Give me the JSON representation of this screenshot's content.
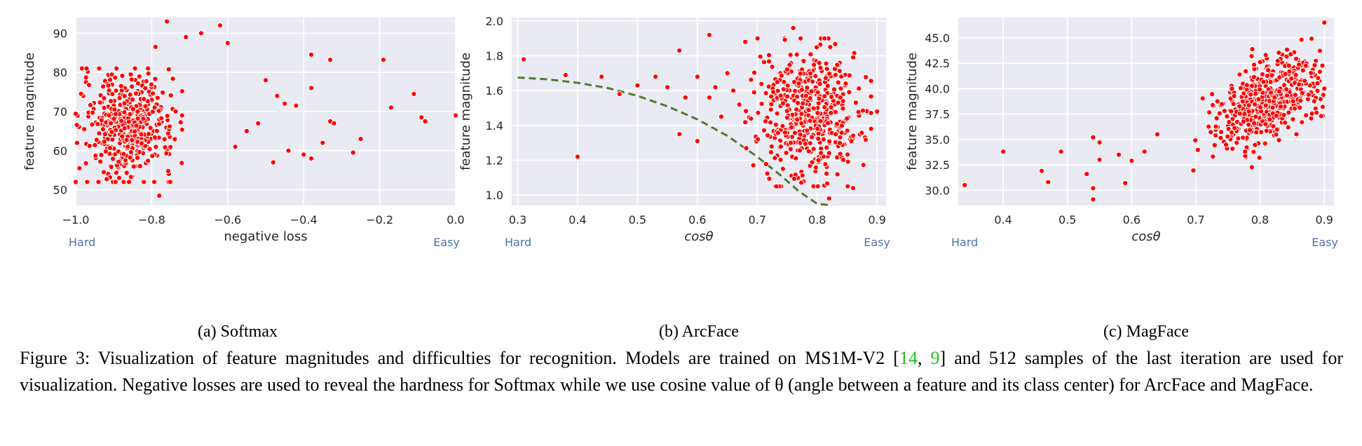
{
  "figure_label": "Figure 3:",
  "caption": {
    "text_before": "Visualization of feature magnitudes and difficulties for recognition. Models are trained on MS1M-V2 [",
    "ref1": "14",
    "sep": ", ",
    "ref2": "9",
    "text_after": "] and 512 samples of the last iteration are used for visualization. Negative losses are used to reveal the hardness for Softmax while we use cosine value of θ (angle between a feature and its class center) for ArcFace and MagFace."
  },
  "colors": {
    "panel_bg": "#eaeaf2",
    "grid": "#ffffff",
    "points": "#ff0000",
    "curve": "#4e7a2e",
    "hard_easy": "#4c72b0",
    "ref": "#22c022"
  },
  "chart_data": [
    {
      "type": "scatter",
      "subcaption": "(a) Softmax",
      "xlabel": "negative loss",
      "ylabel": "feature magnitude",
      "xlim": [
        -1.0,
        0.0
      ],
      "ylim": [
        46,
        94
      ],
      "xticks": [
        -1.0,
        -0.8,
        -0.6,
        -0.4,
        -0.2,
        0.0
      ],
      "xtick_labels": [
        "−1.0",
        "−0.8",
        "−0.6",
        "−0.4",
        "−0.2",
        "0.0"
      ],
      "yticks": [
        50,
        60,
        70,
        80,
        90
      ],
      "ytick_labels": [
        "50",
        "60",
        "70",
        "80",
        "90"
      ],
      "hard_label": "Hard",
      "easy_label": "Easy",
      "grid": true,
      "n_samples": 512,
      "cluster": {
        "x_range": [
          -0.98,
          -0.74
        ],
        "y_range": [
          52,
          81
        ]
      },
      "outliers": [
        [
          -0.76,
          93
        ],
        [
          -0.62,
          92
        ],
        [
          -0.67,
          90
        ],
        [
          -0.71,
          89
        ],
        [
          -0.6,
          87.5
        ],
        [
          -0.79,
          86.5
        ],
        [
          -0.38,
          84.5
        ],
        [
          -0.33,
          83.2
        ],
        [
          -0.19,
          83.2
        ],
        [
          -0.11,
          74.5
        ],
        [
          -0.17,
          71
        ],
        [
          -0.09,
          68.5
        ],
        [
          -0.08,
          67.5
        ],
        [
          0.0,
          69
        ],
        [
          -0.33,
          67.5
        ],
        [
          -0.32,
          67
        ],
        [
          -0.25,
          63
        ],
        [
          -0.27,
          59.5
        ],
        [
          -0.35,
          62
        ],
        [
          -0.4,
          59
        ],
        [
          -0.38,
          58
        ],
        [
          -0.48,
          57
        ],
        [
          -0.78,
          48.5
        ],
        [
          -0.94,
          52
        ],
        [
          -0.97,
          52
        ],
        [
          -0.99,
          55.5
        ],
        [
          -0.45,
          72
        ],
        [
          -0.42,
          71.5
        ],
        [
          -0.38,
          76
        ],
        [
          -0.5,
          78
        ],
        [
          -0.55,
          65
        ],
        [
          -0.44,
          60
        ],
        [
          -0.58,
          61
        ],
        [
          -0.52,
          67
        ],
        [
          -0.47,
          74
        ]
      ]
    },
    {
      "type": "scatter",
      "subcaption": "(b) ArcFace",
      "xlabel": "cosθ",
      "ylabel": "feature magnitude",
      "xlim": [
        0.29,
        0.915
      ],
      "ylim": [
        0.94,
        2.02
      ],
      "xticks": [
        0.3,
        0.4,
        0.5,
        0.6,
        0.7,
        0.8,
        0.9
      ],
      "xtick_labels": [
        "0.3",
        "0.4",
        "0.5",
        "0.6",
        "0.7",
        "0.8",
        "0.9"
      ],
      "yticks": [
        1.0,
        1.2,
        1.4,
        1.6,
        1.8,
        2.0
      ],
      "ytick_labels": [
        "1.0",
        "1.2",
        "1.4",
        "1.6",
        "1.8",
        "2.0"
      ],
      "hard_label": "Hard",
      "easy_label": "Easy",
      "grid": true,
      "n_samples": 512,
      "cluster": {
        "x_range": [
          0.7,
          0.87
        ],
        "y_range": [
          1.05,
          1.9
        ]
      },
      "outliers": [
        [
          0.31,
          1.78
        ],
        [
          0.38,
          1.69
        ],
        [
          0.4,
          1.22
        ],
        [
          0.44,
          1.68
        ],
        [
          0.47,
          1.58
        ],
        [
          0.5,
          1.63
        ],
        [
          0.53,
          1.68
        ],
        [
          0.57,
          1.83
        ],
        [
          0.58,
          1.56
        ],
        [
          0.6,
          1.68
        ],
        [
          0.6,
          1.31
        ],
        [
          0.57,
          1.35
        ],
        [
          0.62,
          1.92
        ],
        [
          0.63,
          1.62
        ],
        [
          0.65,
          1.7
        ],
        [
          0.76,
          1.96
        ],
        [
          0.9,
          1.48
        ],
        [
          0.82,
          0.98
        ],
        [
          0.86,
          1.04
        ],
        [
          0.68,
          1.88
        ],
        [
          0.55,
          1.62
        ],
        [
          0.62,
          1.56
        ],
        [
          0.66,
          1.6
        ],
        [
          0.64,
          1.45
        ],
        [
          0.67,
          1.52
        ]
      ],
      "curve": {
        "style": "dashed",
        "x": [
          0.3,
          0.35,
          0.4,
          0.45,
          0.5,
          0.55,
          0.6,
          0.65,
          0.7,
          0.74,
          0.77,
          0.8,
          0.825
        ],
        "y": [
          1.675,
          1.665,
          1.645,
          1.615,
          1.57,
          1.51,
          1.435,
          1.34,
          1.22,
          1.11,
          1.02,
          0.95,
          0.94
        ]
      }
    },
    {
      "type": "scatter",
      "subcaption": "(c) MagFace",
      "xlabel": "cosθ",
      "ylabel": "feature magnitude",
      "xlim": [
        0.33,
        0.915
      ],
      "ylim": [
        28.5,
        47
      ],
      "xticks": [
        0.4,
        0.5,
        0.6,
        0.7,
        0.8,
        0.9
      ],
      "xtick_labels": [
        "0.4",
        "0.5",
        "0.6",
        "0.7",
        "0.8",
        "0.9"
      ],
      "yticks": [
        30.0,
        32.5,
        35.0,
        37.5,
        40.0,
        42.5,
        45.0
      ],
      "ytick_labels": [
        "30.0",
        "32.5",
        "35.0",
        "37.5",
        "40.0",
        "42.5",
        "45.0"
      ],
      "hard_label": "Hard",
      "easy_label": "Easy",
      "grid": true,
      "n_samples": 512,
      "trend": {
        "x_range": [
          0.6,
          0.9
        ],
        "y_at_start": 32.5,
        "y_at_end": 41.5
      },
      "outliers": [
        [
          0.34,
          30.5
        ],
        [
          0.4,
          33.8
        ],
        [
          0.46,
          31.9
        ],
        [
          0.47,
          30.8
        ],
        [
          0.49,
          33.8
        ],
        [
          0.53,
          31.6
        ],
        [
          0.54,
          30.2
        ],
        [
          0.54,
          29.1
        ],
        [
          0.54,
          35.2
        ],
        [
          0.55,
          34.7
        ],
        [
          0.55,
          33.0
        ],
        [
          0.58,
          33.5
        ],
        [
          0.59,
          30.7
        ],
        [
          0.6,
          32.9
        ],
        [
          0.9,
          46.5
        ],
        [
          0.9,
          40.0
        ],
        [
          0.62,
          33.8
        ],
        [
          0.64,
          35.5
        ]
      ]
    }
  ]
}
